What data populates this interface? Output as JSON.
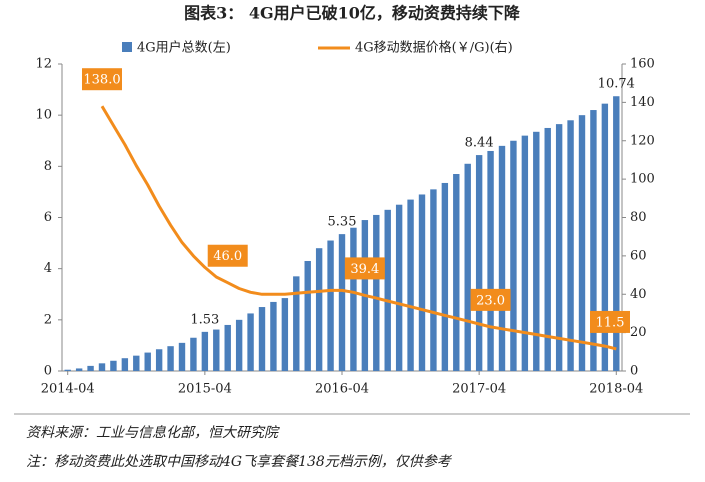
{
  "chart_data": {
    "type": "bar",
    "title": "图表3： 4G用户已破10亿，移动资费持续下降",
    "categories": [
      "2014-04",
      null,
      null,
      null,
      null,
      null,
      null,
      null,
      null,
      null,
      null,
      null,
      "2015-04",
      null,
      null,
      null,
      null,
      null,
      null,
      null,
      null,
      null,
      null,
      null,
      "2016-04",
      null,
      null,
      null,
      null,
      null,
      null,
      null,
      null,
      null,
      null,
      null,
      "2017-04",
      null,
      null,
      null,
      null,
      null,
      null,
      null,
      null,
      null,
      null,
      null,
      "2018-04"
    ],
    "series": [
      {
        "name": "4G用户总数(左)",
        "type": "bar",
        "color": "#4a7ebb",
        "values": [
          0.05,
          0.1,
          0.2,
          0.3,
          0.4,
          0.5,
          0.6,
          0.72,
          0.85,
          0.97,
          1.1,
          1.3,
          1.53,
          1.62,
          1.8,
          2.0,
          2.25,
          2.5,
          2.7,
          2.85,
          3.7,
          4.3,
          4.8,
          5.1,
          5.35,
          5.6,
          5.9,
          6.1,
          6.3,
          6.5,
          6.7,
          6.9,
          7.1,
          7.35,
          7.7,
          8.1,
          8.44,
          8.6,
          8.8,
          9.0,
          9.2,
          9.35,
          9.5,
          9.65,
          9.8,
          10.0,
          10.2,
          10.45,
          10.74
        ],
        "value_labels": [
          null,
          null,
          null,
          null,
          null,
          null,
          null,
          null,
          null,
          null,
          null,
          null,
          "1.53",
          null,
          null,
          null,
          null,
          null,
          null,
          null,
          null,
          null,
          null,
          null,
          "5.35",
          null,
          null,
          null,
          null,
          null,
          null,
          null,
          null,
          null,
          null,
          null,
          "8.44",
          null,
          null,
          null,
          null,
          null,
          null,
          null,
          null,
          null,
          null,
          null,
          "10.74"
        ]
      },
      {
        "name": "4G移动数据价格(￥/G)(右)",
        "type": "line",
        "axis": "y2",
        "color": "#f28c1c",
        "values": [
          null,
          null,
          null,
          138,
          128,
          118,
          107,
          97,
          86,
          76,
          67,
          60,
          54,
          49,
          46,
          43,
          41,
          40,
          40,
          40,
          40.5,
          41,
          41.5,
          42,
          42,
          41,
          39.4,
          38,
          36.5,
          35,
          33.5,
          32,
          30.5,
          29,
          27.5,
          26,
          24.5,
          23,
          22,
          21,
          20,
          19,
          18,
          17,
          16,
          15,
          14,
          13,
          11.5
        ],
        "value_labels": [
          null,
          null,
          null,
          "138.0",
          null,
          null,
          null,
          null,
          null,
          null,
          null,
          null,
          null,
          null,
          "46.0",
          null,
          null,
          null,
          null,
          null,
          null,
          null,
          null,
          null,
          null,
          null,
          "39.4",
          null,
          null,
          null,
          null,
          null,
          null,
          null,
          null,
          null,
          null,
          "23.0",
          null,
          null,
          null,
          null,
          null,
          null,
          null,
          null,
          null,
          null,
          "11.5"
        ]
      }
    ],
    "ylim": [
      0,
      12
    ],
    "yticks": [
      0,
      2,
      4,
      6,
      8,
      10,
      12
    ],
    "y2lim": [
      0,
      160
    ],
    "y2ticks": [
      0,
      20,
      40,
      60,
      80,
      100,
      120,
      140,
      160
    ],
    "legend": "top",
    "notes": [
      "资料来源：工业与信息化部，恒大研究院",
      "注：移动资费此处选取中国移动4G飞享套餐138元档示例，仅供参考"
    ]
  }
}
